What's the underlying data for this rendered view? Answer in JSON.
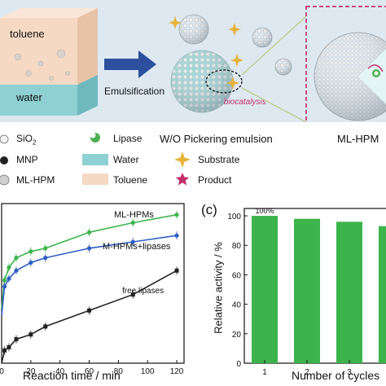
{
  "scheme": {
    "phases": [
      "toluene",
      "water"
    ],
    "process_label": "Emulsification",
    "biocatalysis_label": "biocatalysis",
    "emulsion_label": "W/O Pickering emulsion",
    "particle_label": "ML-HPM",
    "colors": {
      "toluene": "#f6d9c4",
      "water": "#8fd0d2",
      "arrow": "#2d4f9e",
      "substrate": "#e8b33a",
      "product": "#c0306a",
      "lipase": "#4caf50",
      "frame": "#c2185b",
      "top_band": "#dde8f1"
    }
  },
  "legend": [
    {
      "label": "SiO",
      "sub": "2",
      "icon": "sio2-icon"
    },
    {
      "label": "Lipase",
      "icon": "lipase-icon"
    },
    {
      "label": "MNP",
      "icon": "mnp-icon"
    },
    {
      "label": "Water",
      "icon": "water-swatch"
    },
    {
      "label": "Substrate",
      "icon": "substrate-star-icon"
    },
    {
      "label": "ML-HPM",
      "icon": "mlhpm-icon"
    },
    {
      "label": "Toluene",
      "icon": "toluene-swatch"
    },
    {
      "label": "Product",
      "icon": "product-star-icon"
    }
  ],
  "chart_data": [
    {
      "type": "line",
      "xlabel": "Reaction time / min",
      "x_ticks": [
        0,
        20,
        40,
        60,
        80,
        100,
        120
      ],
      "xlim": [
        0,
        125
      ],
      "ylim": [
        0,
        100
      ],
      "series": [
        {
          "name": "ML-HPMs",
          "color": "#3cb44b",
          "x": [
            2,
            5,
            10,
            20,
            30,
            60,
            90,
            120
          ],
          "y": [
            52,
            60,
            66,
            70,
            72,
            82,
            88,
            93
          ]
        },
        {
          "name": "M-HPMs+lipases",
          "color": "#2e5fc4",
          "x": [
            2,
            5,
            10,
            20,
            30,
            60,
            90,
            120
          ],
          "y": [
            48,
            53,
            58,
            63,
            66,
            72,
            76,
            80
          ]
        },
        {
          "name": "free lipases",
          "color": "#222222",
          "x": [
            2,
            5,
            10,
            20,
            30,
            60,
            90,
            120
          ],
          "y": [
            8,
            10,
            15,
            18,
            23,
            33,
            43,
            58
          ]
        }
      ]
    },
    {
      "type": "bar",
      "panel_label": "(c)",
      "xlabel": "Number of cycles",
      "ylabel": "Relative activity / %",
      "categories": [
        "1",
        "2",
        "3",
        "4"
      ],
      "values": [
        100,
        98,
        96,
        93
      ],
      "ylim": [
        0,
        100
      ],
      "y_ticks": [
        0,
        20,
        40,
        60,
        80,
        100
      ],
      "data_labels": [
        "100%"
      ],
      "color": "#3cb44b"
    }
  ]
}
